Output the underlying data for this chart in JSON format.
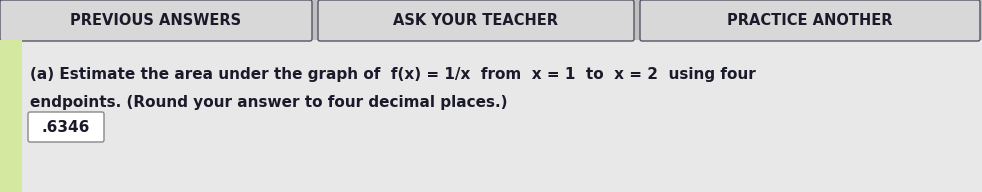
{
  "bg_color": "#c8c8c8",
  "top_bar_color": "#c0c0c0",
  "content_bg": "#e8e8e8",
  "left_bar_color": "#d4e8a0",
  "button_bg": "#d8d8d8",
  "button_border": "#555566",
  "answer_box_color": "#ffffff",
  "text_color": "#1a1a2a",
  "btn1_text": "PREVIOUS ANSWERS",
  "btn2_text": "ASK YOUR TEACHER",
  "btn3_text": "PRACTICE ANOTHER",
  "line1": "(a) Estimate the area under the graph of  f(x) = 1/x  from  x = 1  to  x = 2  using four",
  "line2": "endpoints. (Round your answer to four decimal places.)",
  "answer_value": ".6346",
  "font_size_question": 11.0,
  "font_size_answer": 11.0,
  "font_size_button": 10.5,
  "fig_width": 9.82,
  "fig_height": 1.92,
  "dpi": 100
}
